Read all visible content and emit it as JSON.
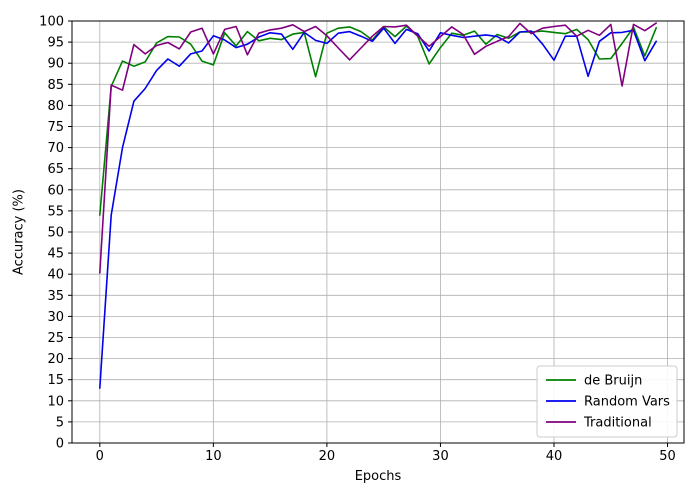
{
  "figure": {
    "background": "#ffffff",
    "grid_color": "#b0b0b0",
    "spine_color": "#000000",
    "legend": {
      "position": "lower right",
      "border_color": "#cccccc",
      "background": "#ffffff"
    }
  },
  "chart_data": {
    "type": "line",
    "title": "",
    "xlabel": "Epochs",
    "ylabel": "Accuracy (%)",
    "xlim": [
      -2.45,
      51.45
    ],
    "ylim": [
      0,
      100
    ],
    "x_ticks": [
      0,
      10,
      20,
      30,
      40,
      50
    ],
    "y_ticks": [
      0,
      5,
      10,
      15,
      20,
      25,
      30,
      35,
      40,
      45,
      50,
      55,
      60,
      65,
      70,
      75,
      80,
      85,
      90,
      95,
      100
    ],
    "grid": true,
    "legend_position": "lower right",
    "x": [
      0,
      1,
      2,
      3,
      4,
      5,
      6,
      7,
      8,
      9,
      10,
      11,
      12,
      13,
      14,
      15,
      16,
      17,
      18,
      19,
      20,
      21,
      22,
      23,
      24,
      25,
      26,
      27,
      28,
      29,
      30,
      31,
      32,
      33,
      34,
      35,
      36,
      37,
      38,
      39,
      40,
      41,
      42,
      43,
      44,
      45,
      46,
      47,
      48,
      49
    ],
    "series": [
      {
        "name": "de Bruijn",
        "color": "#008000",
        "values": [
          54.0,
          84.5,
          90.5,
          89.3,
          90.3,
          94.8,
          96.3,
          96.2,
          94.5,
          90.5,
          89.6,
          97.2,
          94.1,
          97.5,
          95.3,
          95.9,
          95.6,
          96.9,
          97.3,
          86.8,
          97.1,
          98.3,
          98.6,
          97.5,
          95.5,
          98.6,
          96.3,
          98.8,
          96.4,
          89.8,
          93.7,
          97.1,
          96.6,
          97.6,
          94.5,
          96.8,
          95.9,
          97.4,
          97.4,
          97.6,
          97.3,
          97.0,
          98.0,
          95.6,
          91.0,
          91.1,
          94.7,
          98.5,
          91.7,
          98.4
        ]
      },
      {
        "name": "Random Vars",
        "color": "#0000ee",
        "values": [
          13.0,
          54.0,
          70.0,
          81.0,
          84.0,
          88.3,
          91.0,
          89.3,
          92.2,
          92.9,
          96.5,
          95.5,
          93.7,
          94.5,
          96.2,
          97.2,
          96.9,
          93.3,
          97.3,
          95.4,
          94.7,
          97.1,
          97.5,
          96.4,
          95.2,
          98.3,
          94.7,
          98.0,
          97.0,
          92.9,
          97.2,
          96.6,
          96.1,
          96.4,
          96.7,
          96.3,
          94.8,
          97.4,
          97.6,
          94.5,
          90.7,
          96.4,
          96.4,
          86.9,
          95.2,
          97.2,
          97.3,
          97.8,
          90.6,
          95.2
        ]
      },
      {
        "name": "Traditional",
        "color": "#800080",
        "values": [
          40.3,
          84.8,
          83.6,
          94.4,
          92.2,
          94.2,
          94.9,
          93.4,
          97.4,
          98.3,
          92.2,
          98.0,
          98.7,
          92.0,
          97.1,
          97.9,
          98.3,
          99.1,
          97.5,
          98.7,
          96.5,
          93.6,
          90.8,
          93.6,
          96.4,
          98.7,
          98.6,
          99.0,
          96.5,
          94.0,
          96.3,
          98.6,
          96.8,
          92.1,
          94.0,
          95.2,
          96.3,
          99.4,
          97.0,
          98.3,
          98.7,
          99.0,
          96.4,
          97.8,
          96.6,
          99.2,
          84.6,
          99.2,
          97.7,
          99.5
        ]
      }
    ]
  }
}
